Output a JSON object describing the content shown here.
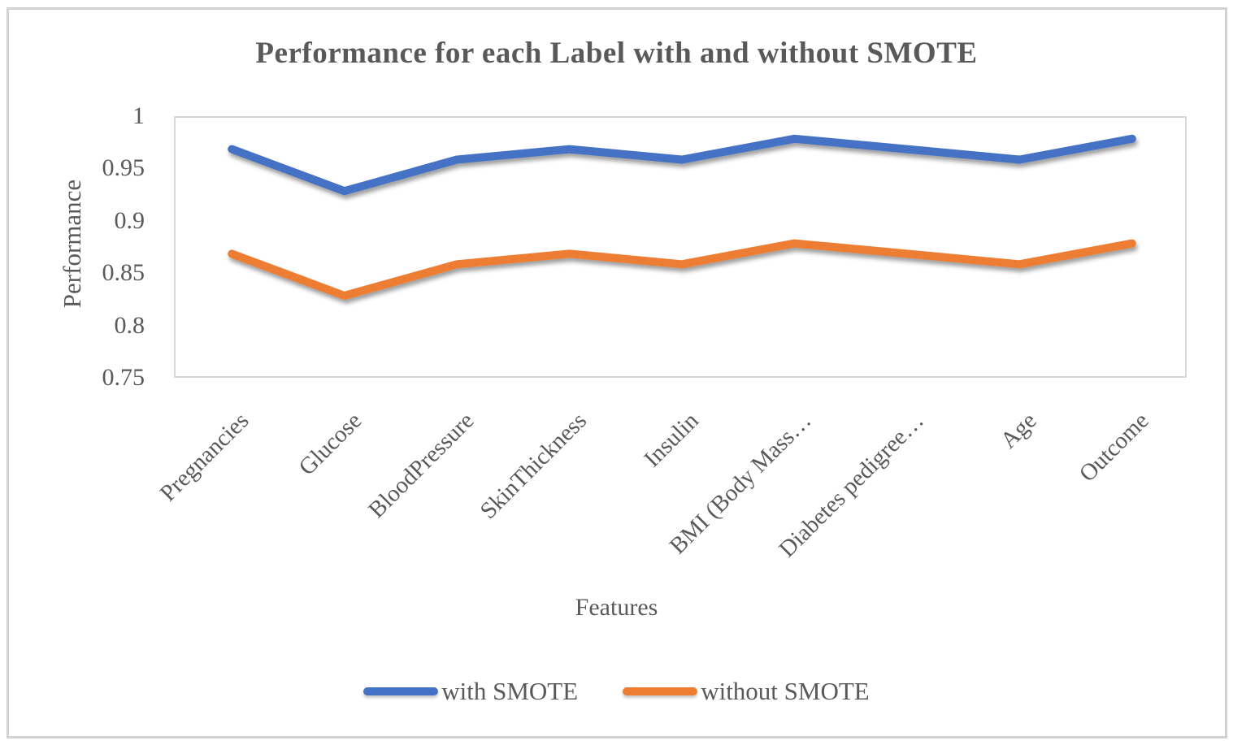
{
  "chart_data": {
    "type": "line",
    "title": "Performance for each Label with and without SMOTE",
    "xlabel": "Features",
    "ylabel": "Performance",
    "categories": [
      "Pregnancies",
      "Glucose",
      "BloodPressure",
      "SkinThickness",
      "Insulin",
      "BMI (Body Mass…",
      "Diabetes pedigree…",
      "Age",
      "Outcome"
    ],
    "series": [
      {
        "name": "with SMOTE",
        "color": "#4472C4",
        "values": [
          0.97,
          0.93,
          0.96,
          0.97,
          0.96,
          0.98,
          0.97,
          0.96,
          0.98
        ]
      },
      {
        "name": "without SMOTE",
        "color": "#ED7D31",
        "values": [
          0.87,
          0.83,
          0.86,
          0.87,
          0.86,
          0.88,
          0.87,
          0.86,
          0.88
        ]
      }
    ],
    "ylim": [
      0.75,
      1.0
    ],
    "y_ticks": [
      1,
      0.95,
      0.9,
      0.85,
      0.8,
      0.75
    ],
    "y_tick_labels": [
      "1",
      "0.95",
      "0.9",
      "0.85",
      "0.8",
      "0.75"
    ],
    "grid": false,
    "legend_position": "bottom",
    "line_width": 10,
    "text_color": "#595959"
  }
}
